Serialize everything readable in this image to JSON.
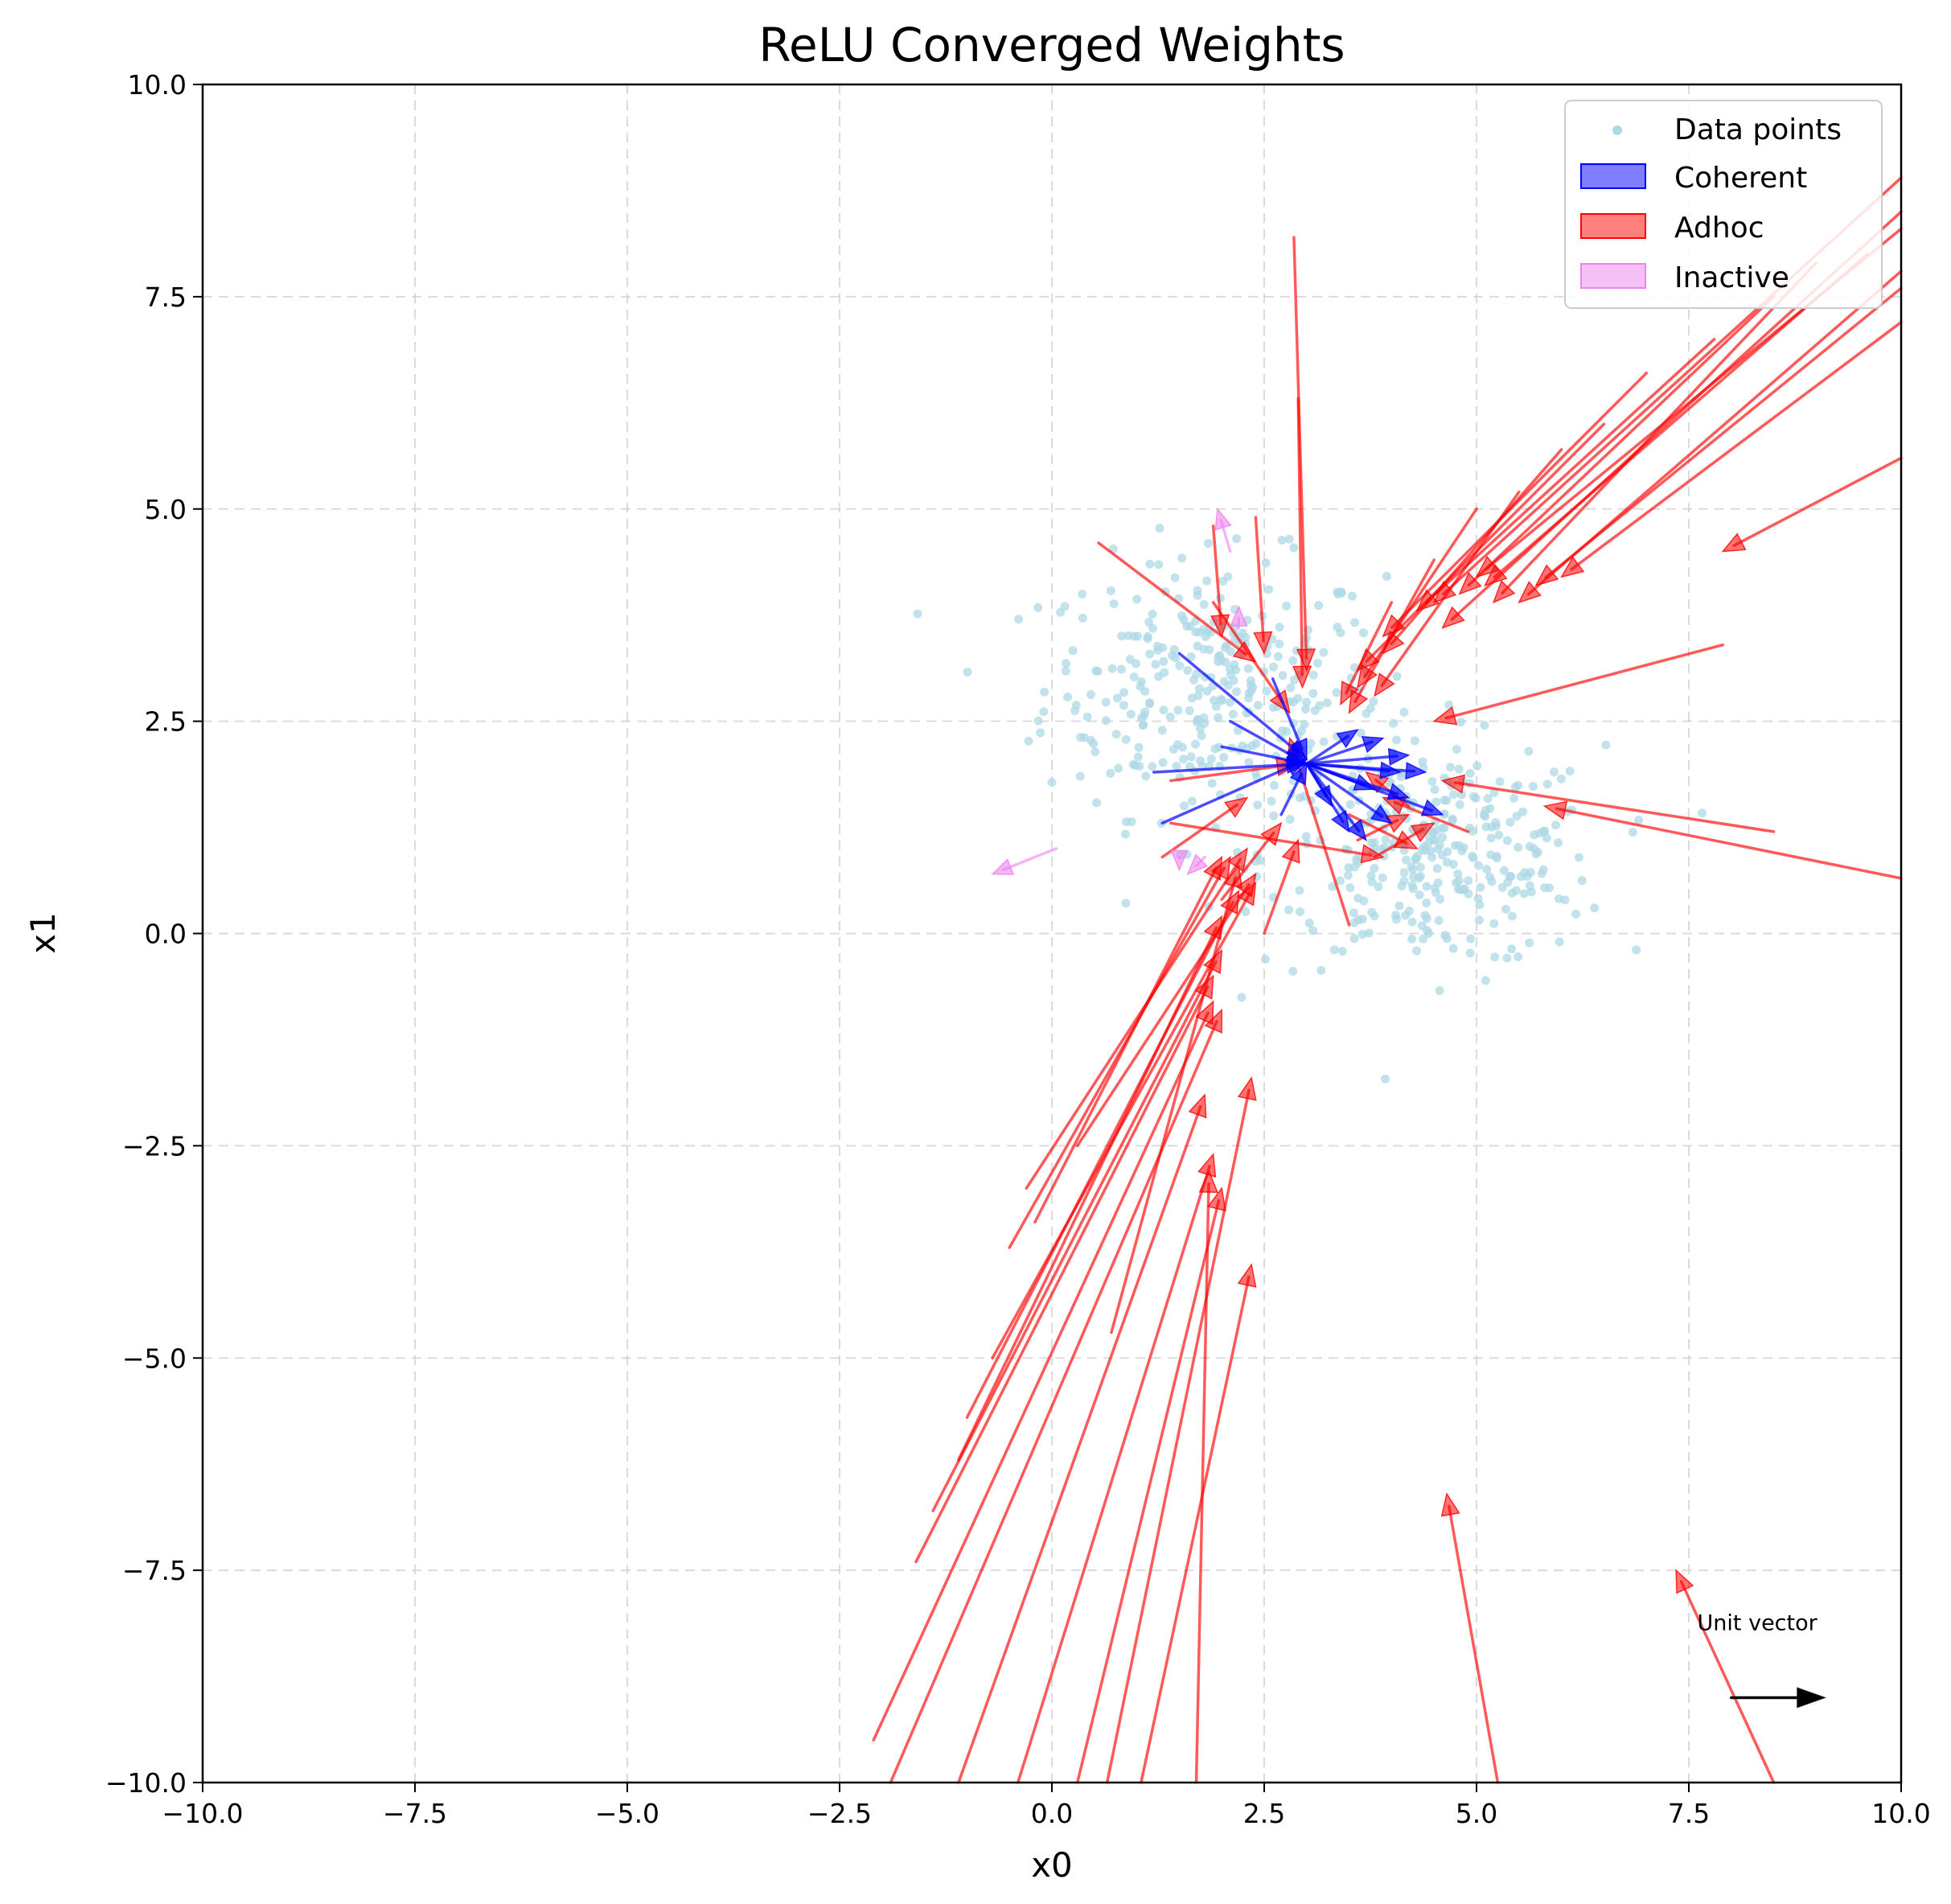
{
  "chart_data": {
    "type": "scatter",
    "title": "ReLU Converged Weights",
    "xlabel": "x0",
    "ylabel": "x1",
    "xlim": [
      -10,
      10
    ],
    "ylim": [
      -10,
      10
    ],
    "xticks": [
      -10,
      -7.5,
      -5,
      -2.5,
      0,
      2.5,
      5,
      7.5,
      10
    ],
    "yticks": [
      -10,
      -7.5,
      -5,
      -2.5,
      0,
      2.5,
      5,
      7.5,
      10
    ],
    "xtick_labels": [
      "−10.0",
      "−7.5",
      "−5.0",
      "−2.5",
      "0.0",
      "2.5",
      "5.0",
      "7.5",
      "10.0"
    ],
    "ytick_labels": [
      "−10.0",
      "−7.5",
      "−5.0",
      "−2.5",
      "0.0",
      "2.5",
      "5.0",
      "7.5",
      "10.0"
    ],
    "grid": true,
    "legend_position": "top-right",
    "colors": {
      "points": "#add8e6",
      "coherent": "#0000ff",
      "adhoc": "#ff0000",
      "inactive": "#ee82ee"
    },
    "legend": [
      {
        "key": "points",
        "label": "Data points"
      },
      {
        "key": "coherent",
        "label": "Coherent"
      },
      {
        "key": "adhoc",
        "label": "Adhoc"
      },
      {
        "key": "inactive",
        "label": "Inactive"
      }
    ],
    "annotation": {
      "text": "Unit vector",
      "x": 7.6,
      "y": -8.3,
      "arrow": [
        [
          8.0,
          -9.0
        ],
        [
          9.1,
          -9.0
        ]
      ]
    },
    "cluster_a": {
      "center": [
        1.9,
        2.9
      ],
      "spread": [
        1.0,
        0.75
      ],
      "count": 320
    },
    "cluster_b": {
      "center": [
        4.5,
        0.9
      ],
      "spread": [
        1.0,
        0.65
      ],
      "count": 320
    },
    "adhoc_arrows": [
      [
        [
          10.0,
          8.9
        ],
        [
          4.5,
          3.9
        ]
      ],
      [
        [
          10.0,
          8.5
        ],
        [
          4.6,
          3.6
        ]
      ],
      [
        [
          10.0,
          8.3
        ],
        [
          5.0,
          4.2
        ]
      ],
      [
        [
          10.0,
          7.8
        ],
        [
          5.5,
          3.9
        ]
      ],
      [
        [
          10.0,
          7.6
        ],
        [
          5.7,
          4.1
        ]
      ],
      [
        [
          10.0,
          7.2
        ],
        [
          6.0,
          4.2
        ]
      ],
      [
        [
          10.0,
          5.6
        ],
        [
          7.9,
          4.5
        ]
      ],
      [
        [
          9.6,
          8.0
        ],
        [
          5.1,
          4.1
        ]
      ],
      [
        [
          9.0,
          7.9
        ],
        [
          5.2,
          3.9
        ]
      ],
      [
        [
          8.5,
          7.5
        ],
        [
          4.8,
          4.0
        ]
      ],
      [
        [
          7.8,
          7.0
        ],
        [
          4.3,
          3.8
        ]
      ],
      [
        [
          7.0,
          6.6
        ],
        [
          3.9,
          3.5
        ]
      ],
      [
        [
          6.5,
          6.0
        ],
        [
          3.6,
          3.1
        ]
      ],
      [
        [
          6.0,
          5.7
        ],
        [
          3.9,
          3.3
        ]
      ],
      [
        [
          5.5,
          5.2
        ],
        [
          3.8,
          2.8
        ]
      ],
      [
        [
          5.0,
          5.0
        ],
        [
          3.6,
          2.9
        ]
      ],
      [
        [
          4.5,
          4.4
        ],
        [
          3.5,
          2.6
        ]
      ],
      [
        [
          4.0,
          3.9
        ],
        [
          3.4,
          2.7
        ]
      ],
      [
        [
          7.9,
          3.4
        ],
        [
          4.5,
          2.5
        ]
      ],
      [
        [
          8.5,
          1.2
        ],
        [
          4.6,
          1.8
        ]
      ],
      [
        [
          10.0,
          0.65
        ],
        [
          5.8,
          1.5
        ]
      ],
      [
        [
          2.85,
          8.2
        ],
        [
          3.0,
          3.1
        ]
      ],
      [
        [
          2.9,
          6.3
        ],
        [
          2.95,
          2.9
        ]
      ],
      [
        [
          0.55,
          4.6
        ],
        [
          2.4,
          3.2
        ]
      ],
      [
        [
          1.9,
          4.8
        ],
        [
          2.0,
          3.5
        ]
      ],
      [
        [
          2.4,
          4.9
        ],
        [
          2.5,
          3.3
        ]
      ],
      [
        [
          1.9,
          3.9
        ],
        [
          2.8,
          2.6
        ]
      ],
      [
        [
          1.4,
          1.3
        ],
        [
          3.9,
          0.9
        ]
      ],
      [
        [
          1.4,
          1.8
        ],
        [
          2.9,
          2.0
        ]
      ],
      [
        [
          3.5,
          0.1
        ],
        [
          2.8,
          2.3
        ]
      ],
      [
        [
          4.9,
          1.2
        ],
        [
          3.9,
          1.6
        ]
      ],
      [
        [
          3.5,
          1.4
        ],
        [
          4.3,
          1.0
        ]
      ],
      [
        [
          3.6,
          1.1
        ],
        [
          4.2,
          1.4
        ]
      ],
      [
        [
          4.2,
          1.5
        ],
        [
          3.7,
          1.9
        ]
      ],
      [
        [
          3.8,
          0.9
        ],
        [
          4.5,
          1.3
        ]
      ],
      [
        [
          0.3,
          -2.5
        ],
        [
          2.4,
          0.7
        ]
      ],
      [
        [
          -0.2,
          -3.4
        ],
        [
          2.0,
          0.9
        ]
      ],
      [
        [
          -0.5,
          -3.7
        ],
        [
          2.1,
          0.9
        ]
      ],
      [
        [
          -0.3,
          -3.0
        ],
        [
          2.3,
          1.0
        ]
      ],
      [
        [
          -0.7,
          -5.0
        ],
        [
          2.4,
          0.6
        ]
      ],
      [
        [
          -1.0,
          -5.7
        ],
        [
          2.2,
          0.5
        ]
      ],
      [
        [
          -1.1,
          -6.2
        ],
        [
          2.0,
          0.2
        ]
      ],
      [
        [
          -1.4,
          -6.8
        ],
        [
          2.0,
          -0.2
        ]
      ],
      [
        [
          -1.6,
          -7.4
        ],
        [
          1.9,
          -0.5
        ]
      ],
      [
        [
          -2.1,
          -9.5
        ],
        [
          1.9,
          -0.8
        ]
      ],
      [
        [
          -1.9,
          -10.0
        ],
        [
          2.0,
          -0.9
        ]
      ],
      [
        [
          -1.1,
          -10.0
        ],
        [
          1.8,
          -1.9
        ]
      ],
      [
        [
          -0.4,
          -10.0
        ],
        [
          1.9,
          -2.6
        ]
      ],
      [
        [
          0.3,
          -10.0
        ],
        [
          2.0,
          -3.0
        ]
      ],
      [
        [
          0.65,
          -10.0
        ],
        [
          2.35,
          -1.7
        ]
      ],
      [
        [
          1.05,
          -10.0
        ],
        [
          2.35,
          -3.9
        ]
      ],
      [
        [
          1.7,
          -10.0
        ],
        [
          1.85,
          -2.8
        ]
      ],
      [
        [
          0.7,
          -4.7
        ],
        [
          2.2,
          0.8
        ]
      ],
      [
        [
          2.0,
          0.4
        ],
        [
          2.7,
          1.3
        ]
      ],
      [
        [
          1.3,
          0.9
        ],
        [
          2.3,
          1.6
        ]
      ],
      [
        [
          2.5,
          0.0
        ],
        [
          2.9,
          1.1
        ]
      ],
      [
        [
          5.25,
          -10.0
        ],
        [
          4.65,
          -6.6
        ]
      ],
      [
        [
          8.5,
          -10.0
        ],
        [
          7.35,
          -7.5
        ]
      ]
    ],
    "coherent_arrows": [
      [
        [
          1.5,
          3.3
        ],
        [
          3.0,
          2.05
        ]
      ],
      [
        [
          1.2,
          1.9
        ],
        [
          3.0,
          2.0
        ]
      ],
      [
        [
          1.3,
          1.3
        ],
        [
          3.0,
          2.05
        ]
      ],
      [
        [
          2.0,
          2.2
        ],
        [
          3.0,
          2.0
        ]
      ],
      [
        [
          2.1,
          2.5
        ],
        [
          3.0,
          2.0
        ]
      ],
      [
        [
          2.6,
          3.0
        ],
        [
          3.0,
          2.05
        ]
      ],
      [
        [
          2.7,
          1.4
        ],
        [
          3.0,
          2.0
        ]
      ],
      [
        [
          3.0,
          2.0
        ],
        [
          4.2,
          2.1
        ]
      ],
      [
        [
          3.0,
          2.0
        ],
        [
          4.4,
          1.9
        ]
      ],
      [
        [
          3.0,
          2.0
        ],
        [
          4.6,
          1.4
        ]
      ],
      [
        [
          3.0,
          2.0
        ],
        [
          4.0,
          1.3
        ]
      ],
      [
        [
          3.0,
          2.0
        ],
        [
          3.7,
          1.1
        ]
      ],
      [
        [
          3.0,
          2.0
        ],
        [
          4.2,
          1.6
        ]
      ],
      [
        [
          3.0,
          2.0
        ],
        [
          3.9,
          2.3
        ]
      ],
      [
        [
          3.0,
          2.0
        ],
        [
          3.3,
          1.5
        ]
      ],
      [
        [
          3.0,
          2.0
        ],
        [
          3.5,
          1.2
        ]
      ],
      [
        [
          3.0,
          2.0
        ],
        [
          4.1,
          1.9
        ]
      ],
      [
        [
          3.0,
          2.0
        ],
        [
          3.6,
          2.4
        ]
      ],
      [
        [
          3.0,
          2.0
        ],
        [
          3.8,
          1.7
        ]
      ]
    ],
    "inactive_arrows": [
      [
        [
          0.05,
          1.0
        ],
        [
          -0.7,
          0.7
        ]
      ],
      [
        [
          1.5,
          0.9
        ],
        [
          1.5,
          0.75
        ]
      ],
      [
        [
          2.1,
          4.5
        ],
        [
          1.95,
          5.0
        ]
      ],
      [
        [
          2.2,
          3.6
        ],
        [
          2.2,
          3.85
        ]
      ],
      [
        [
          1.8,
          0.9
        ],
        [
          1.6,
          0.7
        ]
      ]
    ]
  }
}
